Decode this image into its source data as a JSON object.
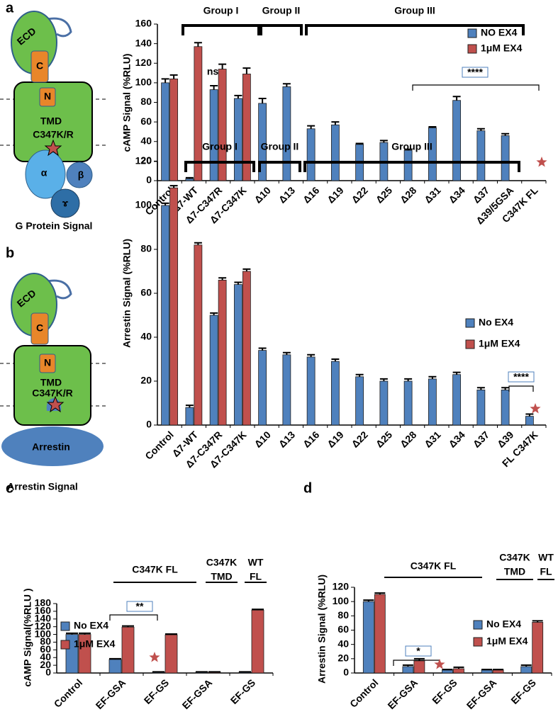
{
  "panel_labels": [
    "a",
    "b",
    "c",
    "d"
  ],
  "diagrams": [
    {
      "ecd": "ECD",
      "c": "C",
      "n": "N",
      "tmd": "TMD",
      "mutation": "C347K/R",
      "alpha": "α",
      "beta": "β",
      "gamma": "ɤ",
      "caption": "G Protein  Signal"
    },
    {
      "ecd": "ECD",
      "c": "C",
      "n": "N",
      "tmd": "TMD",
      "mutation": "C347K/R",
      "arrestin": "Arrestin",
      "caption": "Arrestin Signal"
    }
  ],
  "chart_data": [
    {
      "type": "bar",
      "y_label": "cAMP Signal (%RLU)",
      "categories": [
        "Control",
        "Δ7-WT",
        "Δ7-C347R",
        "Δ7-C347K",
        "Δ10",
        "Δ13",
        "Δ16",
        "Δ19",
        "Δ22",
        "Δ25",
        "Δ28",
        "Δ31",
        "Δ34",
        "Δ37",
        "Δ39/5GSA",
        "C347K FL"
      ],
      "series": [
        {
          "name": "NO EX4",
          "color": "#4f81bd",
          "values": [
            100,
            2,
            93,
            84,
            79,
            96,
            53,
            57,
            37,
            39,
            31,
            54,
            82,
            51,
            46,
            0
          ],
          "errors": [
            4,
            1,
            4,
            3,
            5,
            3,
            3,
            3,
            1,
            2,
            1,
            1,
            4,
            2,
            2,
            0
          ]
        },
        {
          "name": "1μM EX4",
          "color": "#c0504d",
          "values": [
            104,
            137,
            114,
            109,
            null,
            null,
            null,
            null,
            null,
            null,
            null,
            null,
            null,
            null,
            null,
            null
          ],
          "errors": [
            4,
            4,
            5,
            6,
            null,
            null,
            null,
            null,
            null,
            null,
            null,
            null,
            null,
            null,
            null,
            null
          ]
        }
      ],
      "ylim": [
        0,
        160
      ],
      "yticks": [
        0,
        20,
        40,
        60,
        80,
        100,
        120,
        140,
        160
      ],
      "groups": [
        [
          "Group I"
        ],
        [
          "Group II"
        ],
        [
          "Group III"
        ]
      ],
      "annotations": [
        "ns",
        "****"
      ]
    },
    {
      "type": "bar",
      "y_label": "Arrestin Signal (%RLU)",
      "categories": [
        "Control",
        "Δ7-WT",
        "Δ7-C347R",
        "Δ7-C347K",
        "Δ10",
        "Δ13",
        "Δ16",
        "Δ19",
        "Δ22",
        "Δ25",
        "Δ28",
        "Δ31",
        "Δ34",
        "Δ37",
        "Δ39",
        "FL C347K"
      ],
      "series": [
        {
          "name": "No EX4",
          "color": "#4f81bd",
          "values": [
            100,
            8,
            50,
            64,
            34,
            32,
            31,
            29,
            22,
            20,
            20,
            21,
            23,
            16,
            16,
            4
          ],
          "errors": [
            1,
            1,
            1,
            1,
            1,
            1,
            1,
            1,
            1,
            1,
            1,
            1,
            1,
            1,
            1,
            1
          ]
        },
        {
          "name": "1μM EX4",
          "color": "#c0504d",
          "values": [
            108,
            82,
            66,
            70,
            null,
            null,
            null,
            null,
            null,
            null,
            null,
            null,
            null,
            null,
            null,
            null
          ],
          "errors": [
            1,
            1,
            1,
            1,
            null,
            null,
            null,
            null,
            null,
            null,
            null,
            null,
            null,
            null,
            null,
            null
          ]
        }
      ],
      "ylim": [
        0,
        120
      ],
      "yticks": [
        0,
        20,
        40,
        60,
        80,
        100,
        120
      ],
      "groups": [
        [
          "Group I"
        ],
        [
          "Group II"
        ],
        [
          "Group III"
        ]
      ],
      "annotations": [
        "****"
      ]
    },
    {
      "type": "bar",
      "y_label": "cAMP Signal(%RLU )",
      "categories": [
        "Control",
        "EF-GSA",
        "EF-GS",
        "EF-GSA",
        "EF-GS"
      ],
      "series": [
        {
          "name": "No EX4",
          "color": "#4f81bd",
          "values": [
            100,
            35,
            2,
            2,
            2
          ],
          "errors": [
            3,
            2,
            1,
            1,
            1
          ]
        },
        {
          "name": "1μM EX4",
          "color": "#c0504d",
          "values": [
            100,
            119,
            99,
            2,
            163
          ],
          "errors": [
            3,
            3,
            2,
            1,
            2
          ]
        }
      ],
      "ylim": [
        0,
        180
      ],
      "yticks": [
        0,
        20,
        40,
        60,
        80,
        100,
        120,
        140,
        160,
        180
      ],
      "groups": [
        [
          "C347K FL"
        ],
        [
          "C347K",
          "TMD"
        ],
        [
          "WT",
          "FL"
        ]
      ],
      "annotations": [
        "**"
      ]
    },
    {
      "type": "bar",
      "y_label": "Arrestin Signal (%RLU)",
      "categories": [
        "Control",
        "EF-GSA",
        "EF-GS",
        "EF-GSA",
        "EF-GS"
      ],
      "series": [
        {
          "name": "No EX4",
          "color": "#4f81bd",
          "values": [
            100,
            9,
            4,
            4,
            9
          ],
          "errors": [
            2,
            2,
            1,
            1,
            2
          ]
        },
        {
          "name": "1μM EX4",
          "color": "#c0504d",
          "values": [
            110,
            17,
            6,
            4,
            71
          ],
          "errors": [
            2,
            3,
            2,
            1,
            2
          ]
        }
      ],
      "ylim": [
        0,
        120
      ],
      "yticks": [
        0,
        20,
        40,
        60,
        80,
        100,
        120
      ],
      "groups": [
        [
          "C347K FL"
        ],
        [
          "C347K",
          "TMD"
        ],
        [
          "WT",
          "FL"
        ]
      ],
      "annotations": [
        "*"
      ]
    }
  ]
}
